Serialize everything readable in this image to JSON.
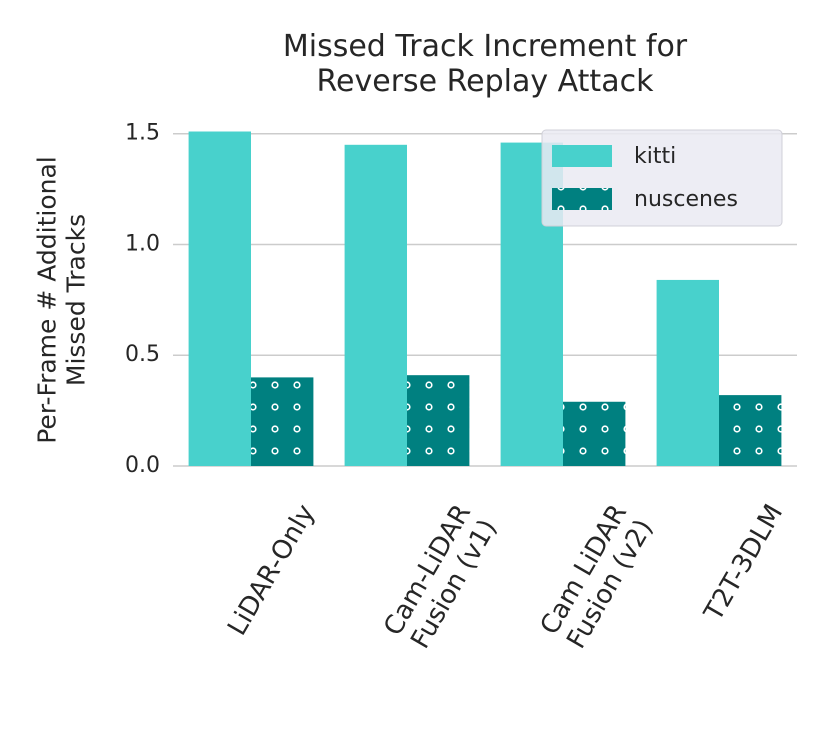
{
  "chart_data": {
    "type": "bar",
    "title": "Missed Track Increment for\nReverse Replay Attack",
    "y_label": "Per-Frame # Additional\nMissed Tracks",
    "categories": [
      "LiDAR-Only",
      "Cam-LiDAR\nFusion (v1)",
      "Cam LiDAR\nFusion (v2)",
      "T2T-3DLM"
    ],
    "series": [
      {
        "name": "kitti",
        "color": "#48d1cc",
        "values": [
          1.51,
          1.45,
          1.46,
          0.84
        ]
      },
      {
        "name": "nuscenes",
        "color": "#008080",
        "hatch": "dots",
        "values": [
          0.4,
          0.41,
          0.29,
          0.32
        ]
      }
    ],
    "ylim": [
      0,
      1.58
    ],
    "yticks": [
      {
        "value": 0,
        "label": "0.0"
      },
      0.5,
      {
        "value": 1,
        "label": "1.0"
      },
      1.5
    ],
    "grid": true,
    "legend": "upper right"
  }
}
